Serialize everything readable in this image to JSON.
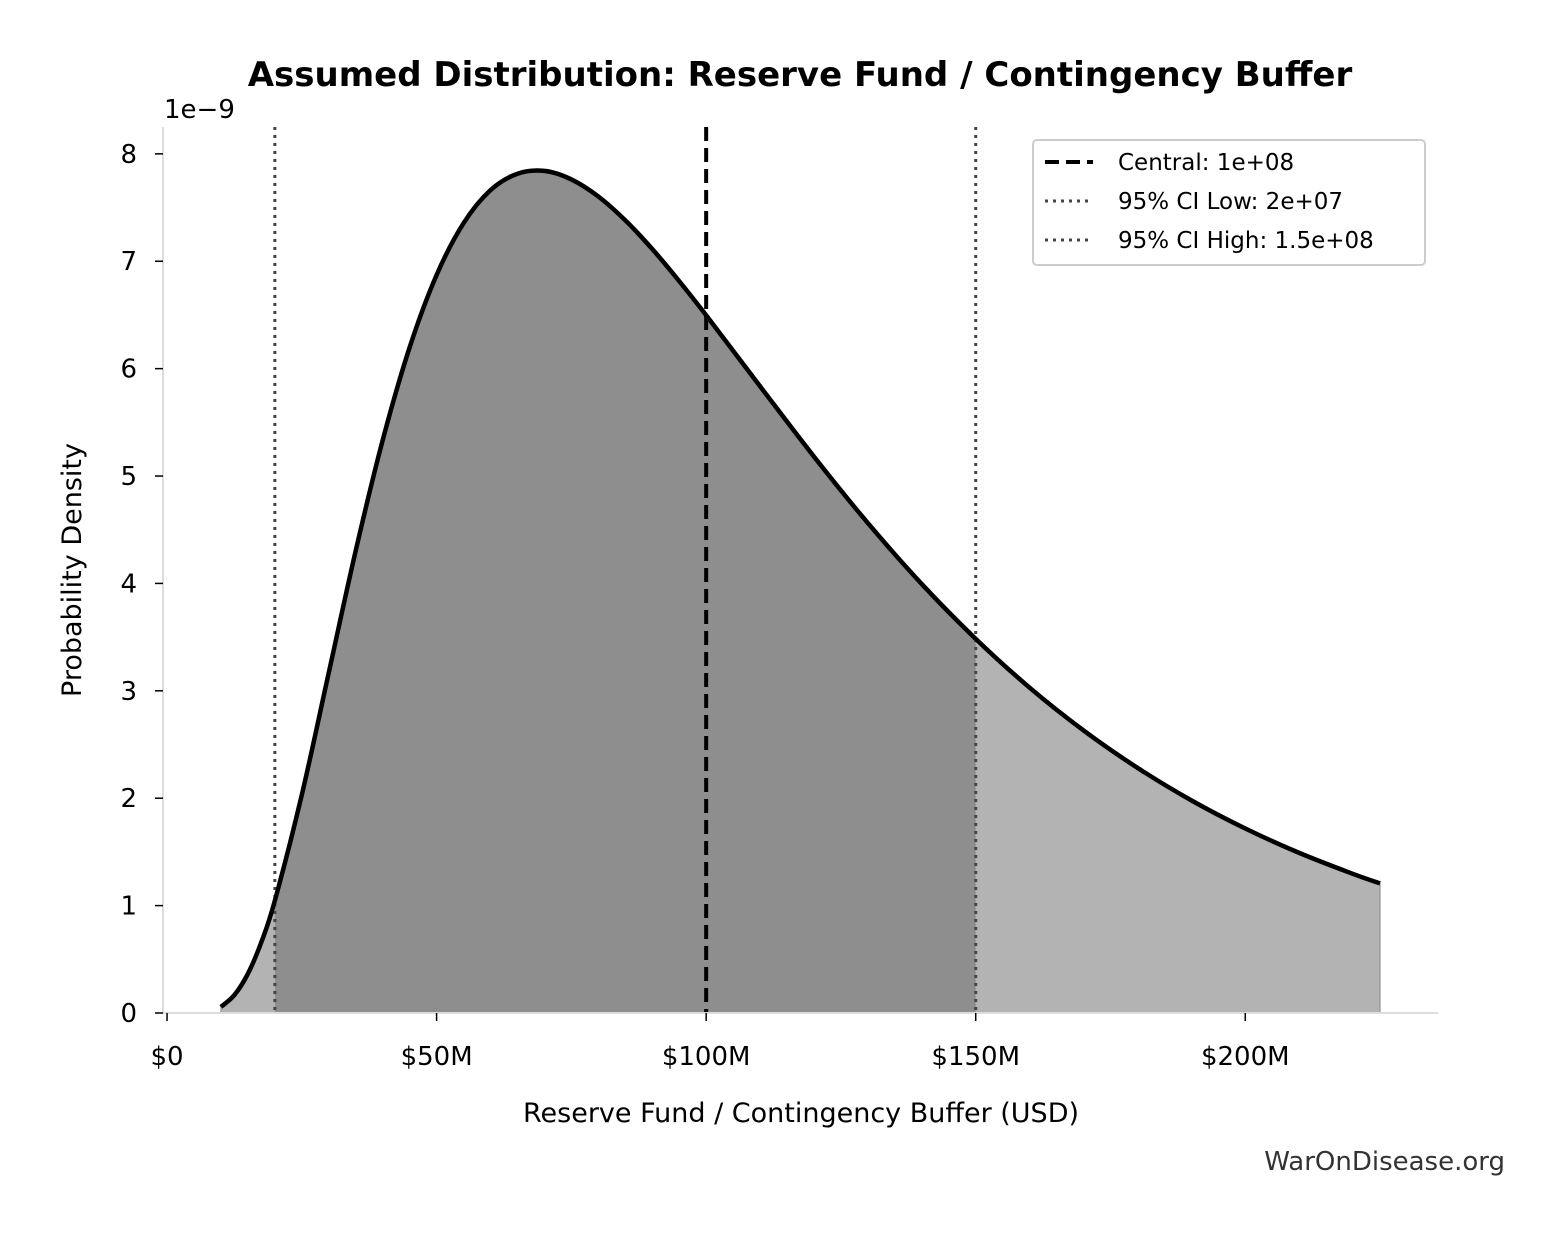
{
  "chart_data": {
    "type": "area",
    "title": "Assumed Distribution: Reserve Fund / Contingency Buffer",
    "xlabel": "Reserve Fund / Contingency Buffer (USD)",
    "ylabel": "Probability Density",
    "y_scale_label": "1e−9",
    "xlim": [
      -750000,
      235750000
    ],
    "ylim": [
      0,
      8.25e-09
    ],
    "grid": false,
    "legend_placement": "top-right",
    "x_ticks": [
      {
        "value": 0,
        "label": "$0"
      },
      {
        "value": 50000000,
        "label": "$50M"
      },
      {
        "value": 100000000,
        "label": "$100M"
      },
      {
        "value": 150000000,
        "label": "$150M"
      },
      {
        "value": 200000000,
        "label": "$200M"
      }
    ],
    "y_ticks": [
      {
        "value": 0,
        "label": "0"
      },
      {
        "value": 1e-09,
        "label": "1"
      },
      {
        "value": 2e-09,
        "label": "2"
      },
      {
        "value": 3e-09,
        "label": "3"
      },
      {
        "value": 4e-09,
        "label": "4"
      },
      {
        "value": 5e-09,
        "label": "5"
      },
      {
        "value": 6e-09,
        "label": "6"
      },
      {
        "value": 7e-09,
        "label": "7"
      },
      {
        "value": 8e-09,
        "label": "8"
      }
    ],
    "density": {
      "x": [
        10000000,
        12500000,
        15000000,
        17500000,
        20000000,
        25000000,
        30000000,
        35000000,
        40000000,
        45000000,
        50000000,
        55000000,
        60000000,
        65000000,
        70000000,
        75000000,
        80000000,
        85000000,
        90000000,
        95000000,
        100000000,
        110000000,
        120000000,
        130000000,
        140000000,
        150000000,
        160000000,
        170000000,
        180000000,
        190000000,
        200000000,
        210000000,
        220000000,
        225000000
      ],
      "y": [
        5.7e-11,
        1.68e-10,
        3.66e-10,
        6.61e-10,
        1.047e-09,
        2.032e-09,
        3.169e-09,
        4.305e-09,
        5.334e-09,
        6.198e-09,
        6.872e-09,
        7.354e-09,
        7.662e-09,
        7.815e-09,
        7.841e-09,
        7.762e-09,
        7.603e-09,
        7.381e-09,
        7.114e-09,
        6.815e-09,
        6.497e-09,
        5.836e-09,
        5.181e-09,
        4.562e-09,
        3.994e-09,
        3.484e-09,
        3.029e-09,
        2.631e-09,
        2.283e-09,
        1.98e-09,
        1.718e-09,
        1.491e-09,
        1.295e-09,
        1.207e-09
      ],
      "line_color": "#000000",
      "fill_color": "#b3b3b3",
      "ci_fill_color": "#8e8e8e"
    },
    "reference_lines": [
      {
        "name": "Central: 1e+08",
        "value": 100000000,
        "style": "dashed",
        "color": "#000000"
      },
      {
        "name": "95% CI Low: 2e+07",
        "value": 20000000,
        "style": "dotted",
        "color": "#444444"
      },
      {
        "name": "95% CI High: 1.5e+08",
        "value": 150000000,
        "style": "dotted",
        "color": "#444444"
      }
    ]
  },
  "watermark": "WarOnDisease.org"
}
